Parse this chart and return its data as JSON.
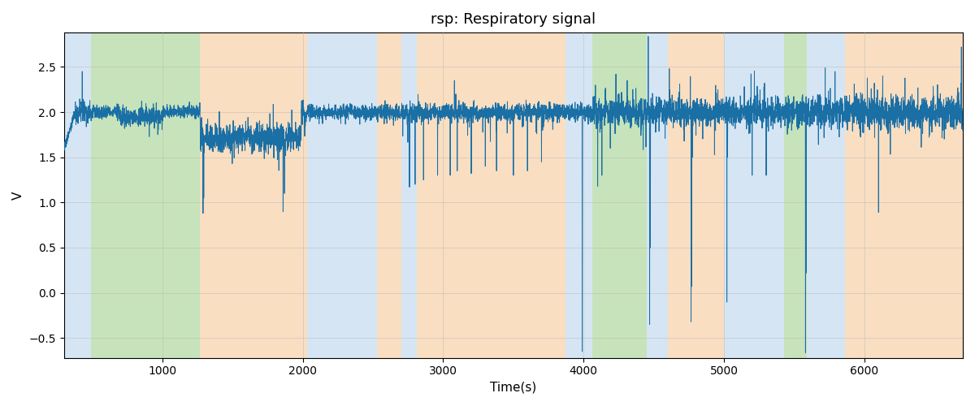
{
  "title": "rsp: Respiratory signal",
  "xlabel": "Time(s)",
  "ylabel": "V",
  "xlim": [
    300,
    6700
  ],
  "ylim": [
    -0.72,
    2.88
  ],
  "line_color": "#1a6fa5",
  "line_width": 0.7,
  "background_color": "#ffffff",
  "grid_color": "#b0b0b0",
  "bands": [
    {
      "start": 300,
      "end": 490,
      "color": "#aecce8",
      "alpha": 0.5
    },
    {
      "start": 490,
      "end": 1270,
      "color": "#90c878",
      "alpha": 0.5
    },
    {
      "start": 1270,
      "end": 2030,
      "color": "#f5c99a",
      "alpha": 0.6
    },
    {
      "start": 2030,
      "end": 2530,
      "color": "#aecce8",
      "alpha": 0.5
    },
    {
      "start": 2530,
      "end": 2700,
      "color": "#f5c99a",
      "alpha": 0.6
    },
    {
      "start": 2700,
      "end": 2810,
      "color": "#aecce8",
      "alpha": 0.5
    },
    {
      "start": 2810,
      "end": 3870,
      "color": "#f5c99a",
      "alpha": 0.6
    },
    {
      "start": 3870,
      "end": 4060,
      "color": "#aecce8",
      "alpha": 0.5
    },
    {
      "start": 4060,
      "end": 4450,
      "color": "#90c878",
      "alpha": 0.5
    },
    {
      "start": 4450,
      "end": 4600,
      "color": "#aecce8",
      "alpha": 0.5
    },
    {
      "start": 4600,
      "end": 5000,
      "color": "#f5c99a",
      "alpha": 0.6
    },
    {
      "start": 5000,
      "end": 5430,
      "color": "#aecce8",
      "alpha": 0.5
    },
    {
      "start": 5430,
      "end": 5590,
      "color": "#90c878",
      "alpha": 0.5
    },
    {
      "start": 5590,
      "end": 5860,
      "color": "#aecce8",
      "alpha": 0.5
    },
    {
      "start": 5860,
      "end": 6700,
      "color": "#f5c99a",
      "alpha": 0.6
    }
  ],
  "xticks": [
    1000,
    2000,
    3000,
    4000,
    5000,
    6000
  ],
  "yticks": [
    -0.5,
    0.0,
    0.5,
    1.0,
    1.5,
    2.0,
    2.5
  ],
  "figsize": [
    12.0,
    5.0
  ],
  "dpi": 100,
  "baseline": 2.0
}
